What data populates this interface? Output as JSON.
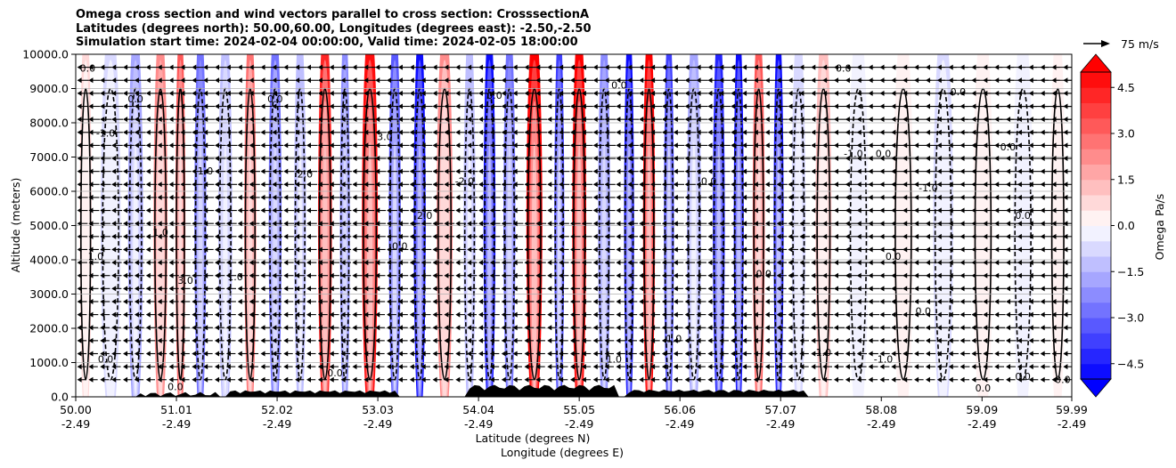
{
  "title_lines": [
    "Omega cross section and wind vectors parallel to cross section: CrosssectionA",
    "Latitudes (degrees north): 50.00,60.00, Longitudes (degrees east): -2.50,-2.50",
    "Simulation start time: 2024-02-04 00:00:00, Valid time: 2024-02-05 18:00:00"
  ],
  "chart_data": {
    "type": "heatmap",
    "title": "Omega cross section and wind vectors parallel to cross section: CrosssectionA",
    "xlabel": "Latitude (degrees N)",
    "xlabel2": "Longitude (degrees E)",
    "ylabel": "Altitude (meters)",
    "ylim": [
      0,
      10000
    ],
    "xlim": [
      50.0,
      59.99
    ],
    "x_ticks": [
      {
        "lat": "50.00",
        "lon": "-2.49",
        "v": 50.0
      },
      {
        "lat": "51.01",
        "lon": "-2.49",
        "v": 51.01
      },
      {
        "lat": "52.02",
        "lon": "-2.49",
        "v": 52.02
      },
      {
        "lat": "53.03",
        "lon": "-2.49",
        "v": 53.03
      },
      {
        "lat": "54.04",
        "lon": "-2.49",
        "v": 54.04
      },
      {
        "lat": "55.05",
        "lon": "-2.49",
        "v": 55.05
      },
      {
        "lat": "56.06",
        "lon": "-2.49",
        "v": 56.06
      },
      {
        "lat": "57.07",
        "lon": "-2.49",
        "v": 57.07
      },
      {
        "lat": "58.08",
        "lon": "-2.49",
        "v": 58.08
      },
      {
        "lat": "59.09",
        "lon": "-2.49",
        "v": 59.09
      },
      {
        "lat": "59.99",
        "lon": "-2.49",
        "v": 59.99
      }
    ],
    "y_ticks": [
      {
        "label": "0.0",
        "v": 0
      },
      {
        "label": "1000.0",
        "v": 1000
      },
      {
        "label": "2000.0",
        "v": 2000
      },
      {
        "label": "3000.0",
        "v": 3000
      },
      {
        "label": "4000.0",
        "v": 4000
      },
      {
        "label": "5000.0",
        "v": 5000
      },
      {
        "label": "6000.0",
        "v": 6000
      },
      {
        "label": "7000.0",
        "v": 7000
      },
      {
        "label": "8000.0",
        "v": 8000
      },
      {
        "label": "9000.0",
        "v": 9000
      },
      {
        "label": "10000.0",
        "v": 10000
      }
    ],
    "grid": true,
    "colorbar": {
      "label": "Omega Pa/s",
      "range": [
        -5,
        5
      ],
      "ticks": [
        {
          "label": "4.5",
          "v": 4.5
        },
        {
          "label": "3.0",
          "v": 3.0
        },
        {
          "label": "1.5",
          "v": 1.5
        },
        {
          "label": "0.0",
          "v": 0.0
        },
        {
          "label": "−1.5",
          "v": -1.5
        },
        {
          "label": "−3.0",
          "v": -3.0
        },
        {
          "label": "−4.5",
          "v": -4.5
        }
      ],
      "extend": "both",
      "colormap": "bwr"
    },
    "quiver_key": {
      "label": "75 m/s"
    },
    "omega_bands": [
      {
        "lat": 50.1,
        "w": 0.12,
        "omega": 0.6
      },
      {
        "lat": 50.35,
        "w": 0.2,
        "omega": -0.6
      },
      {
        "lat": 50.6,
        "w": 0.15,
        "omega": -1.8
      },
      {
        "lat": 50.85,
        "w": 0.14,
        "omega": 2.2
      },
      {
        "lat": 51.05,
        "w": 0.1,
        "omega": 3.0
      },
      {
        "lat": 51.25,
        "w": 0.12,
        "omega": -3.0
      },
      {
        "lat": 51.5,
        "w": 0.14,
        "omega": -1.2
      },
      {
        "lat": 51.75,
        "w": 0.12,
        "omega": 2.5
      },
      {
        "lat": 52.0,
        "w": 0.13,
        "omega": -2.8
      },
      {
        "lat": 52.25,
        "w": 0.12,
        "omega": -1.5
      },
      {
        "lat": 52.5,
        "w": 0.14,
        "omega": 4.0
      },
      {
        "lat": 52.7,
        "w": 0.1,
        "omega": -2.5
      },
      {
        "lat": 52.95,
        "w": 0.16,
        "omega": 4.5
      },
      {
        "lat": 53.2,
        "w": 0.12,
        "omega": -3.5
      },
      {
        "lat": 53.45,
        "w": 0.12,
        "omega": -5.0
      },
      {
        "lat": 53.7,
        "w": 0.16,
        "omega": 2.0
      },
      {
        "lat": 53.95,
        "w": 0.12,
        "omega": -1.5
      },
      {
        "lat": 54.15,
        "w": 0.12,
        "omega": -5.0
      },
      {
        "lat": 54.35,
        "w": 0.12,
        "omega": -3.0
      },
      {
        "lat": 54.6,
        "w": 0.16,
        "omega": 5.0
      },
      {
        "lat": 54.85,
        "w": 0.1,
        "omega": -4.0
      },
      {
        "lat": 55.05,
        "w": 0.14,
        "omega": 5.0
      },
      {
        "lat": 55.3,
        "w": 0.12,
        "omega": -2.5
      },
      {
        "lat": 55.55,
        "w": 0.1,
        "omega": -5.0
      },
      {
        "lat": 55.75,
        "w": 0.12,
        "omega": 5.0
      },
      {
        "lat": 55.95,
        "w": 0.1,
        "omega": -4.0
      },
      {
        "lat": 56.2,
        "w": 0.14,
        "omega": -2.0
      },
      {
        "lat": 56.45,
        "w": 0.12,
        "omega": -4.5
      },
      {
        "lat": 56.65,
        "w": 0.1,
        "omega": -5.0
      },
      {
        "lat": 56.85,
        "w": 0.12,
        "omega": 3.0
      },
      {
        "lat": 57.05,
        "w": 0.1,
        "omega": -5.0
      },
      {
        "lat": 57.25,
        "w": 0.14,
        "omega": -1.0
      },
      {
        "lat": 57.5,
        "w": 0.16,
        "omega": 1.0
      },
      {
        "lat": 57.85,
        "w": 0.2,
        "omega": -0.5
      },
      {
        "lat": 58.3,
        "w": 0.2,
        "omega": 0.4
      },
      {
        "lat": 58.7,
        "w": 0.2,
        "omega": -0.6
      },
      {
        "lat": 59.1,
        "w": 0.2,
        "omega": 0.3
      },
      {
        "lat": 59.5,
        "w": 0.2,
        "omega": -0.4
      },
      {
        "lat": 59.85,
        "w": 0.15,
        "omega": 0.3
      }
    ],
    "contour_labels": [
      {
        "text": "0.0",
        "lat": 50.12,
        "alt": 9500
      },
      {
        "text": "0.0",
        "lat": 50.6,
        "alt": 8600
      },
      {
        "text": "-1.0",
        "lat": 50.3,
        "alt": 7600
      },
      {
        "text": "1.0",
        "lat": 51.3,
        "alt": 6500
      },
      {
        "text": "1.0",
        "lat": 50.85,
        "alt": 4700
      },
      {
        "text": "1.0",
        "lat": 50.2,
        "alt": 4000
      },
      {
        "text": "3.0",
        "lat": 51.1,
        "alt": 3300
      },
      {
        "text": "0.0",
        "lat": 50.3,
        "alt": 1000
      },
      {
        "text": "0.0",
        "lat": 51.0,
        "alt": 200
      },
      {
        "text": "1.0",
        "lat": 51.6,
        "alt": 3400
      },
      {
        "text": "2.0",
        "lat": 52.3,
        "alt": 6400
      },
      {
        "text": "0.0",
        "lat": 52.0,
        "alt": 8600
      },
      {
        "text": "3.0",
        "lat": 53.1,
        "alt": 7500
      },
      {
        "text": "2.0",
        "lat": 53.5,
        "alt": 5200
      },
      {
        "text": "0.0",
        "lat": 53.25,
        "alt": 4300
      },
      {
        "text": "0.0",
        "lat": 52.6,
        "alt": 600
      },
      {
        "text": "-2.0",
        "lat": 53.9,
        "alt": 6200
      },
      {
        "text": "0.0",
        "lat": 54.2,
        "alt": 8700
      },
      {
        "text": "0.0",
        "lat": 55.45,
        "alt": 9000
      },
      {
        "text": "1.0",
        "lat": 55.4,
        "alt": 1000
      },
      {
        "text": "1.0",
        "lat": 56.0,
        "alt": 1600
      },
      {
        "text": "0.0",
        "lat": 56.35,
        "alt": 6200
      },
      {
        "text": "0.0",
        "lat": 56.9,
        "alt": 3500
      },
      {
        "text": "1.0",
        "lat": 57.5,
        "alt": 1200
      },
      {
        "text": "-1.0",
        "lat": 57.8,
        "alt": 7000
      },
      {
        "text": "0.0",
        "lat": 58.1,
        "alt": 7000
      },
      {
        "text": "0.0",
        "lat": 58.85,
        "alt": 8800
      },
      {
        "text": "-1.0",
        "lat": 58.55,
        "alt": 6000
      },
      {
        "text": "0.0",
        "lat": 59.35,
        "alt": 7200
      },
      {
        "text": "0.0",
        "lat": 59.5,
        "alt": 5200
      },
      {
        "text": "0.0",
        "lat": 58.2,
        "alt": 4000
      },
      {
        "text": "0.0",
        "lat": 58.5,
        "alt": 2400
      },
      {
        "text": "-1.0",
        "lat": 58.1,
        "alt": 1000
      },
      {
        "text": "0.0",
        "lat": 59.1,
        "alt": 150
      },
      {
        "text": "0.0",
        "lat": 59.5,
        "alt": 500
      },
      {
        "text": "0.0",
        "lat": 59.9,
        "alt": 400
      },
      {
        "text": "0.0",
        "lat": 57.7,
        "alt": 9500
      }
    ]
  }
}
